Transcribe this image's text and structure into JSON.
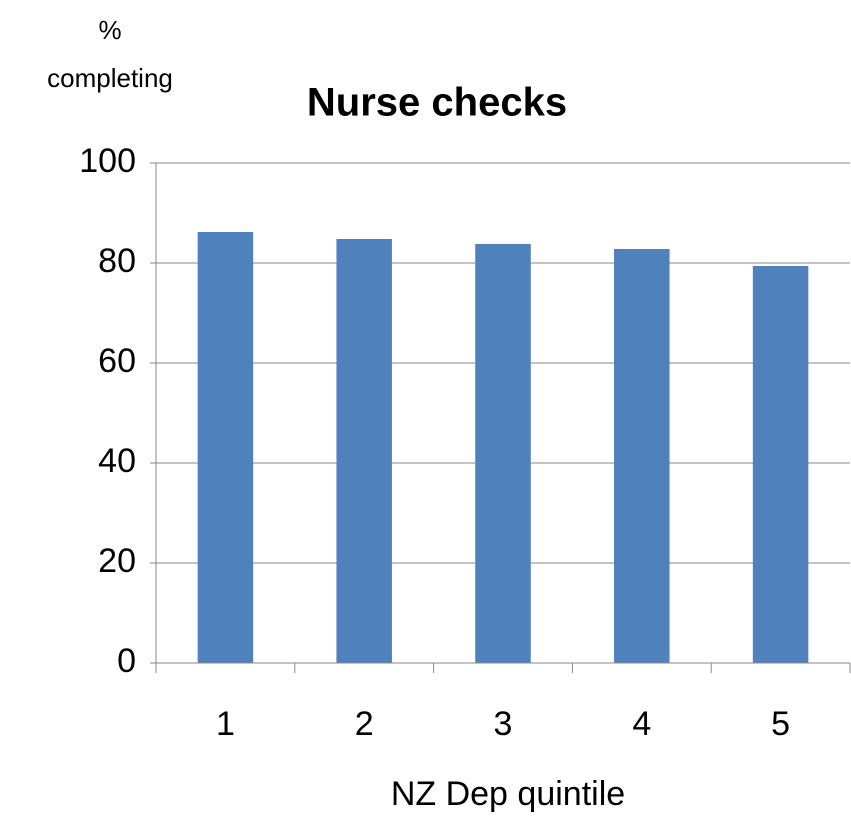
{
  "chart_data": {
    "type": "bar",
    "title": "Nurse checks",
    "ylabel": [
      "%",
      "completing"
    ],
    "xlabel": "NZ Dep quintile",
    "categories": [
      "1",
      "2",
      "3",
      "4",
      "5"
    ],
    "values": [
      86.2,
      84.8,
      83.8,
      82.8,
      79.4
    ],
    "color": "#4f81bd",
    "ylim": [
      0,
      100
    ],
    "yticks": [
      0,
      20,
      40,
      60,
      80,
      100
    ],
    "grid": true
  }
}
